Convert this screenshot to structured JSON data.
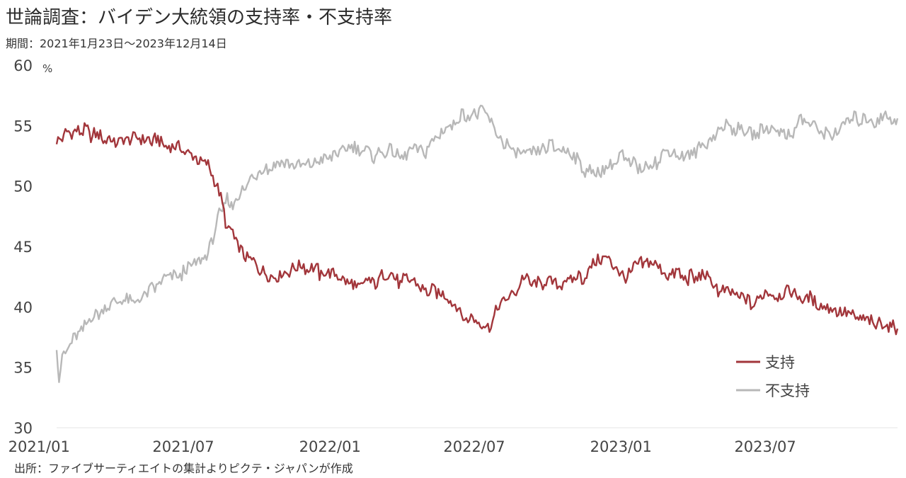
{
  "header": {
    "title": "世論調査：バイデン大統領の支持率・不支持率",
    "subtitle": "期間：2021年1月23日～2023年12月14日"
  },
  "footer": {
    "source": "出所：ファイブサーティエイトの集計よりピクテ・ジャパンが作成"
  },
  "chart_data": {
    "type": "line",
    "title": "世論調査：バイデン大統領の支持率・不支持率",
    "subtitle": "期間：2021年1月23日～2023年12月14日",
    "ylabel": "%",
    "ylim": [
      30,
      60
    ],
    "yticks": [
      "60",
      "55",
      "50",
      "45",
      "40",
      "35",
      "30"
    ],
    "x_range": [
      "2021-01-23",
      "2023-12-14"
    ],
    "xticks": [
      "2021/01",
      "2021/07",
      "2022/01",
      "2022/07",
      "2023/01",
      "2023/07"
    ],
    "xtick_dates": [
      "2021-01-01",
      "2021-07-01",
      "2022-01-01",
      "2022-07-01",
      "2023-01-01",
      "2023-07-01"
    ],
    "grid": false,
    "legend_position": "bottom-right",
    "series": [
      {
        "name": "支持",
        "color": "#a2363b",
        "x": [
          "2021-01-23",
          "2021-02-01",
          "2021-02-15",
          "2021-03-01",
          "2021-03-15",
          "2021-04-01",
          "2021-04-15",
          "2021-05-01",
          "2021-05-15",
          "2021-06-01",
          "2021-06-15",
          "2021-07-01",
          "2021-07-15",
          "2021-08-01",
          "2021-08-15",
          "2021-08-25",
          "2021-09-01",
          "2021-09-15",
          "2021-10-01",
          "2021-10-15",
          "2021-11-01",
          "2021-11-15",
          "2021-12-01",
          "2021-12-15",
          "2022-01-01",
          "2022-01-15",
          "2022-02-01",
          "2022-02-15",
          "2022-03-01",
          "2022-03-15",
          "2022-04-01",
          "2022-04-15",
          "2022-05-01",
          "2022-05-15",
          "2022-06-01",
          "2022-06-15",
          "2022-07-01",
          "2022-07-20",
          "2022-08-01",
          "2022-08-15",
          "2022-09-01",
          "2022-09-15",
          "2022-10-01",
          "2022-10-15",
          "2022-11-01",
          "2022-11-15",
          "2022-12-01",
          "2022-12-15",
          "2023-01-01",
          "2023-01-15",
          "2023-02-01",
          "2023-02-15",
          "2023-03-01",
          "2023-03-15",
          "2023-04-01",
          "2023-04-15",
          "2023-05-01",
          "2023-05-15",
          "2023-06-01",
          "2023-06-15",
          "2023-07-01",
          "2023-07-15",
          "2023-08-01",
          "2023-08-15",
          "2023-09-01",
          "2023-09-15",
          "2023-10-01",
          "2023-10-15",
          "2023-11-01",
          "2023-11-15",
          "2023-12-01",
          "2023-12-14"
        ],
        "values": [
          54.0,
          54.2,
          54.4,
          54.6,
          54.0,
          53.8,
          53.6,
          53.9,
          53.6,
          53.9,
          53.2,
          53.0,
          52.6,
          51.8,
          49.5,
          46.5,
          46.0,
          44.3,
          43.5,
          42.8,
          42.8,
          43.0,
          43.4,
          42.9,
          42.7,
          42.5,
          41.7,
          42.0,
          42.1,
          42.7,
          42.0,
          42.4,
          41.5,
          41.4,
          40.5,
          39.4,
          38.7,
          38.0,
          40.5,
          40.8,
          42.3,
          42.0,
          42.0,
          41.8,
          42.5,
          42.5,
          43.5,
          44.2,
          42.5,
          43.0,
          43.7,
          43.3,
          42.6,
          42.8,
          42.3,
          42.7,
          41.5,
          41.0,
          40.8,
          40.2,
          41.1,
          40.9,
          41.2,
          40.7,
          40.5,
          40.2,
          39.5,
          39.3,
          38.8,
          38.6,
          38.4,
          38.2
        ]
      },
      {
        "name": "不支持",
        "color": "#b8b8b8",
        "x": [
          "2021-01-23",
          "2021-01-26",
          "2021-02-01",
          "2021-02-15",
          "2021-03-01",
          "2021-03-15",
          "2021-04-01",
          "2021-04-15",
          "2021-05-01",
          "2021-05-15",
          "2021-06-01",
          "2021-06-15",
          "2021-07-01",
          "2021-07-15",
          "2021-08-01",
          "2021-08-15",
          "2021-08-25",
          "2021-09-01",
          "2021-09-15",
          "2021-10-01",
          "2021-10-15",
          "2021-11-01",
          "2021-11-15",
          "2021-12-01",
          "2021-12-15",
          "2022-01-01",
          "2022-01-15",
          "2022-02-01",
          "2022-02-15",
          "2022-03-01",
          "2022-03-15",
          "2022-04-01",
          "2022-04-15",
          "2022-05-01",
          "2022-05-15",
          "2022-06-01",
          "2022-06-15",
          "2022-07-01",
          "2022-07-15",
          "2022-08-01",
          "2022-08-15",
          "2022-09-01",
          "2022-09-15",
          "2022-10-01",
          "2022-10-15",
          "2022-11-01",
          "2022-11-15",
          "2022-12-01",
          "2022-12-15",
          "2023-01-01",
          "2023-01-15",
          "2023-02-01",
          "2023-02-15",
          "2023-03-01",
          "2023-03-15",
          "2023-04-01",
          "2023-04-15",
          "2023-05-01",
          "2023-05-15",
          "2023-06-01",
          "2023-06-15",
          "2023-07-01",
          "2023-07-15",
          "2023-08-01",
          "2023-08-15",
          "2023-09-01",
          "2023-09-15",
          "2023-10-01",
          "2023-10-15",
          "2023-11-01",
          "2023-11-15",
          "2023-12-01",
          "2023-12-14"
        ],
        "values": [
          37.0,
          34.0,
          36.0,
          37.8,
          38.5,
          39.5,
          40.3,
          40.8,
          40.2,
          40.8,
          42.0,
          42.3,
          42.8,
          43.3,
          44.5,
          47.5,
          49.0,
          48.5,
          49.8,
          51.0,
          51.5,
          52.0,
          51.5,
          51.5,
          52.0,
          52.5,
          52.8,
          53.2,
          52.8,
          52.5,
          53.0,
          52.5,
          53.3,
          53.0,
          54.2,
          55.0,
          55.7,
          56.2,
          55.8,
          54.0,
          53.0,
          52.6,
          52.8,
          53.3,
          53.2,
          52.5,
          51.3,
          51.0,
          51.5,
          52.5,
          51.8,
          51.5,
          52.0,
          52.8,
          52.5,
          52.8,
          53.2,
          54.5,
          55.0,
          54.8,
          54.2,
          54.5,
          55.0,
          54.2,
          55.5,
          55.0,
          54.2,
          54.3,
          55.5,
          55.3,
          55.5,
          55.8,
          55.6
        ]
      }
    ]
  }
}
